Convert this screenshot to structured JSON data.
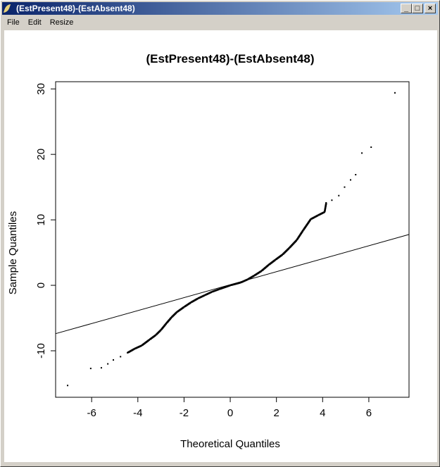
{
  "window": {
    "title": "(EstPresent48)-(EstAbsent48)",
    "buttons": [
      "_",
      "□",
      "×"
    ]
  },
  "menu": [
    "File",
    "Edit",
    "Resize"
  ],
  "chart_data": {
    "type": "scatter",
    "title": "(EstPresent48)-(EstAbsent48)",
    "xlabel": "Theoretical Quantiles",
    "ylabel": "Sample Quantiles",
    "xlim": [
      -7.56,
      7.74
    ],
    "ylim": [
      -17.1,
      31.1
    ],
    "xticks": [
      -6,
      -4,
      -2,
      0,
      2,
      4,
      6
    ],
    "yticks": [
      -10,
      0,
      10,
      20,
      30
    ],
    "grid": false,
    "points": [
      [
        -7.04,
        -15.3
      ],
      [
        -6.04,
        -12.7
      ],
      [
        -5.58,
        -12.6
      ],
      [
        -5.3,
        -12.0
      ],
      [
        -5.06,
        -11.4
      ],
      [
        -4.75,
        -10.9
      ],
      [
        -4.45,
        -10.3
      ],
      [
        -4.15,
        -9.7
      ],
      [
        -3.84,
        -9.2
      ],
      [
        -3.5,
        -8.3
      ],
      [
        -3.23,
        -7.6
      ],
      [
        -3.0,
        -6.8
      ],
      [
        -2.77,
        -5.8
      ],
      [
        -2.55,
        -4.9
      ],
      [
        -2.32,
        -4.1
      ],
      [
        -2.0,
        -3.3
      ],
      [
        -1.7,
        -2.6
      ],
      [
        -1.4,
        -2.0
      ],
      [
        -1.1,
        -1.5
      ],
      [
        -0.8,
        -1.0
      ],
      [
        -0.49,
        -0.6
      ],
      [
        0,
        0
      ],
      [
        0.43,
        0.4
      ],
      [
        0.75,
        0.9
      ],
      [
        1.04,
        1.5
      ],
      [
        1.35,
        2.2
      ],
      [
        1.65,
        3.1
      ],
      [
        1.95,
        3.9
      ],
      [
        2.26,
        4.7
      ],
      [
        2.55,
        5.7
      ],
      [
        2.87,
        6.9
      ],
      [
        3.15,
        8.4
      ],
      [
        3.48,
        10.1
      ],
      [
        3.8,
        10.7
      ],
      [
        4.08,
        11.2
      ],
      [
        4.15,
        12.6
      ],
      [
        4.4,
        13.0
      ],
      [
        4.7,
        13.7
      ],
      [
        4.95,
        15.0
      ],
      [
        5.21,
        16.1
      ],
      [
        5.43,
        16.9
      ],
      [
        5.7,
        20.2
      ],
      [
        6.1,
        21.1
      ],
      [
        7.13,
        29.4
      ]
    ],
    "reference_line": {
      "intercept": 0.1,
      "slope": 0.99
    }
  }
}
